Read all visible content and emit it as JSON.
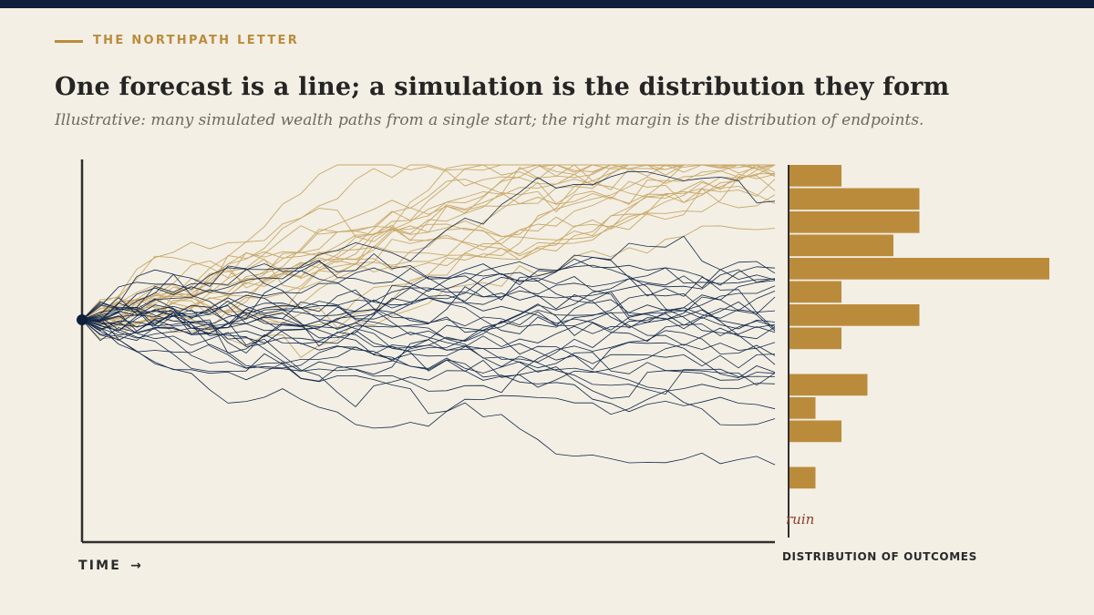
{
  "header": {
    "kicker": "THE NORTHPATH LETTER",
    "title": "One forecast is a line; a simulation is the distribution they form",
    "subtitle": "Illustrative: many simulated wealth paths from a single start; the right margin is the distribution of endpoints."
  },
  "colors": {
    "background": "#f3efe4",
    "top_bar": "#0f1f3d",
    "accent_gold": "#bb8b3c",
    "path_gold": "#c9a86a",
    "path_navy": "#13284a",
    "ruin": "#8e3a30",
    "axis": "#2f2f2f"
  },
  "chart_data": {
    "type": "line",
    "xlabel": "TIME",
    "xlabel_arrow": "→",
    "ylabel": "",
    "series_groups": [
      {
        "color": "#c9a86a",
        "paths": 22
      },
      {
        "color": "#13284a",
        "paths": 30
      }
    ],
    "start_value": 0,
    "annotation": "ruin",
    "histogram": {
      "label": "DISTRIBUTION OF OUTCOMES",
      "bins_top_to_bottom": [
        2,
        5,
        5,
        4,
        10,
        2,
        5,
        2,
        0,
        3,
        1,
        2,
        0,
        1
      ]
    }
  }
}
